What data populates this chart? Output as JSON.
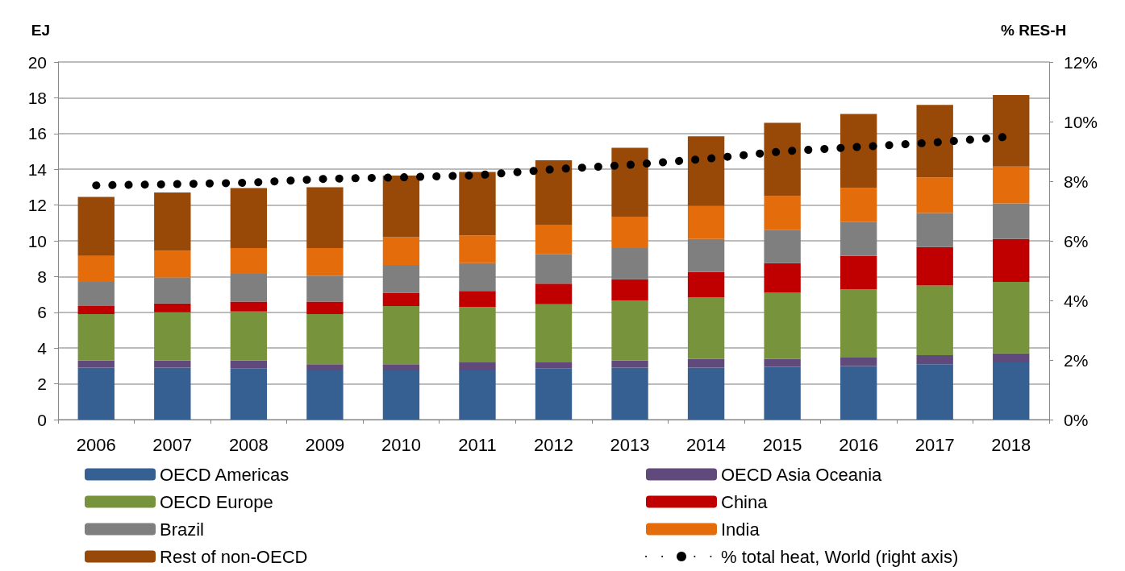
{
  "chart_data": {
    "type": "bar",
    "stacked": true,
    "ylabel": "EJ",
    "y2label": "% RES-H",
    "categories": [
      "2006",
      "2007",
      "2008",
      "2009",
      "2010",
      "2011",
      "2012",
      "2013",
      "2014",
      "2015",
      "2016",
      "2017",
      "2018"
    ],
    "ylim": [
      0,
      20
    ],
    "yticks": [
      0,
      2,
      4,
      6,
      8,
      10,
      12,
      14,
      16,
      18,
      20
    ],
    "y2lim": [
      0,
      12
    ],
    "y2ticks": [
      {
        "value": 0,
        "label": "0%"
      },
      {
        "value": 2,
        "label": "2%"
      },
      {
        "value": 4,
        "label": "4%"
      },
      {
        "value": 6,
        "label": "6%"
      },
      {
        "value": 8,
        "label": "8%"
      },
      {
        "value": 10,
        "label": "10%"
      },
      {
        "value": 12,
        "label": "12%"
      }
    ],
    "grid": "y",
    "legend": "bottom",
    "series": [
      {
        "name": "OECD Americas",
        "color": "#376092",
        "values": [
          2.9,
          2.9,
          2.85,
          2.75,
          2.75,
          2.75,
          2.85,
          2.9,
          2.9,
          2.95,
          3.0,
          3.1,
          3.2
        ]
      },
      {
        "name": "OECD Asia Oceania",
        "color": "#604a7b",
        "values": [
          0.4,
          0.4,
          0.45,
          0.35,
          0.35,
          0.45,
          0.35,
          0.4,
          0.5,
          0.45,
          0.5,
          0.5,
          0.5
        ]
      },
      {
        "name": "OECD Europe",
        "color": "#77933c",
        "values": [
          2.6,
          2.7,
          2.75,
          2.8,
          3.25,
          3.1,
          3.25,
          3.35,
          3.45,
          3.7,
          3.8,
          3.9,
          4.0
        ]
      },
      {
        "name": "China",
        "color": "#c00000",
        "values": [
          0.45,
          0.5,
          0.55,
          0.7,
          0.75,
          0.9,
          1.15,
          1.2,
          1.4,
          1.65,
          1.85,
          2.15,
          2.4
        ]
      },
      {
        "name": "Brazil",
        "color": "#7f7f7f",
        "values": [
          1.35,
          1.45,
          1.55,
          1.45,
          1.55,
          1.55,
          1.65,
          1.75,
          1.85,
          1.85,
          1.9,
          1.9,
          2.0
        ]
      },
      {
        "name": "India",
        "color": "#e46c0a",
        "values": [
          1.45,
          1.5,
          1.45,
          1.55,
          1.55,
          1.55,
          1.65,
          1.75,
          1.85,
          1.9,
          1.9,
          2.0,
          2.05
        ]
      },
      {
        "name": "Rest of non-OECD",
        "color": "#984807",
        "values": [
          3.3,
          3.25,
          3.35,
          3.4,
          3.45,
          3.55,
          3.6,
          3.85,
          3.9,
          4.1,
          4.15,
          4.05,
          4.0
        ]
      },
      {
        "name": "% total heat, World (right axis)",
        "type": "line",
        "axis": "y2",
        "color": "#000000",
        "line_style": "dotted",
        "marker": "none",
        "values": [
          7.86,
          7.9,
          7.95,
          8.08,
          8.13,
          8.2,
          8.4,
          8.55,
          8.75,
          9.0,
          9.15,
          9.3,
          9.5
        ]
      }
    ]
  }
}
